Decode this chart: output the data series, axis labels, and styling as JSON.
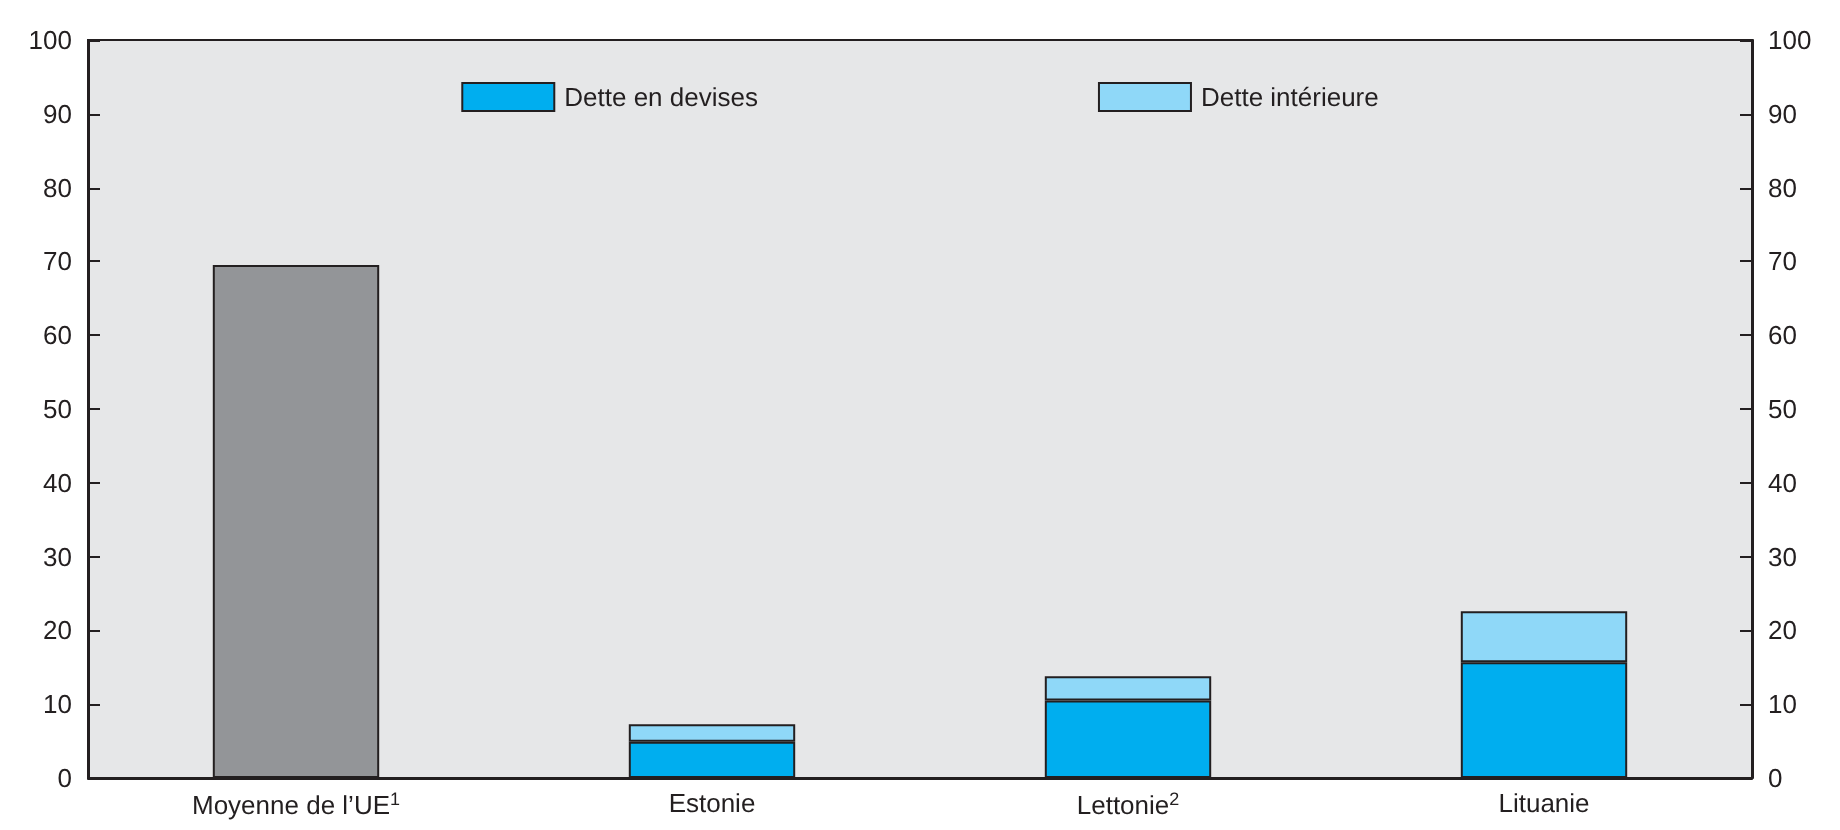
{
  "chart_data": {
    "type": "bar",
    "stacked": true,
    "categories": [
      "Moyenne de l’UE$^{1}$",
      "Estonie",
      "Lettonie$^{2}$",
      "Lituanie"
    ],
    "series": [
      {
        "color": "#939598",
        "values": [
          69.5,
          null,
          null,
          null
        ]
      },
      {
        "name": "Dette en devises",
        "color": "#00aeef",
        "values": [
          null,
          4.9,
          10.5,
          15.7
        ]
      },
      {
        "name": "Dette intérieure",
        "color": "#8fd8f8",
        "values": [
          null,
          2.4,
          3.3,
          6.9
        ]
      }
    ],
    "ylim": [
      0,
      100
    ],
    "yticks": [
      0,
      10,
      20,
      30,
      40,
      50,
      60,
      70,
      80,
      90,
      100
    ],
    "y2lim": [
      0,
      100
    ],
    "y2ticks": [
      0,
      10,
      20,
      30,
      40,
      50,
      60,
      70,
      80,
      90,
      100
    ],
    "grid": false,
    "legend": "top"
  }
}
